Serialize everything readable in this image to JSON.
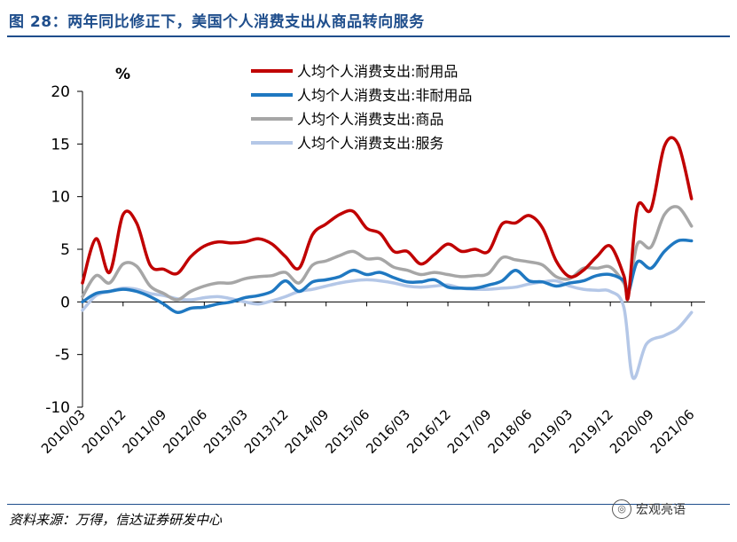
{
  "header": {
    "title": "图 28：两年同比修正下，美国个人消费支出从商品转向服务"
  },
  "footer": {
    "source": "资料来源：万得，信达证券研发中心",
    "watermark": "宏观亮语"
  },
  "chart_data": {
    "type": "line",
    "unit_label": "%",
    "ylim": [
      -10,
      20
    ],
    "yticks": [
      -10,
      -5,
      0,
      5,
      10,
      15,
      20
    ],
    "x_tick_labels": [
      "2010/03",
      "2010/12",
      "2011/09",
      "2012/06",
      "2013/03",
      "2013/12",
      "2014/09",
      "2015/06",
      "2016/03",
      "2016/12",
      "2017/09",
      "2018/06",
      "2019/03",
      "2019/12",
      "2020/09",
      "2021/06"
    ],
    "x_start": "2010/03",
    "x_end": "2021/09",
    "legend_position": "top-center",
    "series": [
      {
        "name": "人均个人消费支出:耐用品",
        "color": "#c00000",
        "points": [
          [
            "2010/03",
            1.8
          ],
          [
            "2010/06",
            6.0
          ],
          [
            "2010/09",
            2.8
          ],
          [
            "2010/12",
            8.3
          ],
          [
            "2011/03",
            7.5
          ],
          [
            "2011/06",
            3.5
          ],
          [
            "2011/09",
            3.1
          ],
          [
            "2011/12",
            2.7
          ],
          [
            "2012/03",
            4.3
          ],
          [
            "2012/06",
            5.3
          ],
          [
            "2012/09",
            5.7
          ],
          [
            "2012/12",
            5.6
          ],
          [
            "2013/03",
            5.7
          ],
          [
            "2013/06",
            6.0
          ],
          [
            "2013/09",
            5.5
          ],
          [
            "2013/12",
            4.3
          ],
          [
            "2014/03",
            3.2
          ],
          [
            "2014/06",
            6.4
          ],
          [
            "2014/09",
            7.4
          ],
          [
            "2014/12",
            8.3
          ],
          [
            "2015/03",
            8.6
          ],
          [
            "2015/06",
            7.0
          ],
          [
            "2015/09",
            6.5
          ],
          [
            "2015/12",
            4.8
          ],
          [
            "2016/03",
            4.8
          ],
          [
            "2016/06",
            3.6
          ],
          [
            "2016/09",
            4.5
          ],
          [
            "2016/12",
            5.5
          ],
          [
            "2017/03",
            4.8
          ],
          [
            "2017/06",
            5.0
          ],
          [
            "2017/09",
            4.8
          ],
          [
            "2017/12",
            7.4
          ],
          [
            "2018/03",
            7.5
          ],
          [
            "2018/06",
            8.2
          ],
          [
            "2018/09",
            7.0
          ],
          [
            "2018/12",
            3.9
          ],
          [
            "2019/03",
            2.4
          ],
          [
            "2019/06",
            3.0
          ],
          [
            "2019/09",
            4.3
          ],
          [
            "2019/12",
            5.3
          ],
          [
            "2020/03",
            2.5
          ],
          [
            "2020/04",
            0.5
          ],
          [
            "2020/06",
            9.0
          ],
          [
            "2020/09",
            8.8
          ],
          [
            "2020/12",
            14.8
          ],
          [
            "2021/03",
            15.0
          ],
          [
            "2021/06",
            9.8
          ]
        ]
      },
      {
        "name": "人均个人消费支出:非耐用品",
        "color": "#1f78c1",
        "points": [
          [
            "2010/03",
            0.0
          ],
          [
            "2010/06",
            0.8
          ],
          [
            "2010/09",
            1.0
          ],
          [
            "2010/12",
            1.2
          ],
          [
            "2011/03",
            1.0
          ],
          [
            "2011/06",
            0.5
          ],
          [
            "2011/09",
            -0.2
          ],
          [
            "2011/12",
            -1.0
          ],
          [
            "2012/03",
            -0.6
          ],
          [
            "2012/06",
            -0.5
          ],
          [
            "2012/09",
            -0.2
          ],
          [
            "2012/12",
            0.0
          ],
          [
            "2013/03",
            0.4
          ],
          [
            "2013/06",
            0.6
          ],
          [
            "2013/09",
            1.0
          ],
          [
            "2013/12",
            2.0
          ],
          [
            "2014/03",
            1.0
          ],
          [
            "2014/06",
            1.9
          ],
          [
            "2014/09",
            2.1
          ],
          [
            "2014/12",
            2.4
          ],
          [
            "2015/03",
            3.0
          ],
          [
            "2015/06",
            2.6
          ],
          [
            "2015/09",
            2.8
          ],
          [
            "2015/12",
            2.3
          ],
          [
            "2016/03",
            1.9
          ],
          [
            "2016/06",
            1.9
          ],
          [
            "2016/09",
            2.1
          ],
          [
            "2016/12",
            1.4
          ],
          [
            "2017/03",
            1.3
          ],
          [
            "2017/06",
            1.3
          ],
          [
            "2017/09",
            1.6
          ],
          [
            "2017/12",
            2.0
          ],
          [
            "2018/03",
            3.0
          ],
          [
            "2018/06",
            2.0
          ],
          [
            "2018/09",
            1.9
          ],
          [
            "2018/12",
            1.5
          ],
          [
            "2019/03",
            1.8
          ],
          [
            "2019/06",
            2.0
          ],
          [
            "2019/09",
            2.5
          ],
          [
            "2019/12",
            2.6
          ],
          [
            "2020/03",
            2.0
          ],
          [
            "2020/04",
            0.9
          ],
          [
            "2020/06",
            3.8
          ],
          [
            "2020/09",
            3.2
          ],
          [
            "2020/12",
            4.8
          ],
          [
            "2021/03",
            5.8
          ],
          [
            "2021/06",
            5.8
          ]
        ]
      },
      {
        "name": "人均个人消费支出:商品",
        "color": "#a6a6a6",
        "points": [
          [
            "2010/03",
            0.5
          ],
          [
            "2010/06",
            2.5
          ],
          [
            "2010/09",
            1.8
          ],
          [
            "2010/12",
            3.6
          ],
          [
            "2011/03",
            3.4
          ],
          [
            "2011/06",
            1.5
          ],
          [
            "2011/09",
            0.8
          ],
          [
            "2011/12",
            0.2
          ],
          [
            "2012/03",
            1.0
          ],
          [
            "2012/06",
            1.5
          ],
          [
            "2012/09",
            1.8
          ],
          [
            "2012/12",
            1.8
          ],
          [
            "2013/03",
            2.2
          ],
          [
            "2013/06",
            2.4
          ],
          [
            "2013/09",
            2.5
          ],
          [
            "2013/12",
            2.8
          ],
          [
            "2014/03",
            1.8
          ],
          [
            "2014/06",
            3.5
          ],
          [
            "2014/09",
            3.9
          ],
          [
            "2014/12",
            4.4
          ],
          [
            "2015/03",
            4.8
          ],
          [
            "2015/06",
            4.1
          ],
          [
            "2015/09",
            4.1
          ],
          [
            "2015/12",
            3.3
          ],
          [
            "2016/03",
            3.0
          ],
          [
            "2016/06",
            2.6
          ],
          [
            "2016/09",
            2.8
          ],
          [
            "2016/12",
            2.6
          ],
          [
            "2017/03",
            2.4
          ],
          [
            "2017/06",
            2.5
          ],
          [
            "2017/09",
            2.7
          ],
          [
            "2017/12",
            4.2
          ],
          [
            "2018/03",
            4.0
          ],
          [
            "2018/06",
            3.8
          ],
          [
            "2018/09",
            3.5
          ],
          [
            "2018/12",
            2.4
          ],
          [
            "2019/03",
            2.2
          ],
          [
            "2019/06",
            3.2
          ],
          [
            "2019/09",
            3.2
          ],
          [
            "2019/12",
            3.3
          ],
          [
            "2020/03",
            1.8
          ],
          [
            "2020/04",
            0.7
          ],
          [
            "2020/06",
            5.5
          ],
          [
            "2020/09",
            5.2
          ],
          [
            "2020/12",
            8.3
          ],
          [
            "2021/03",
            9.0
          ],
          [
            "2021/06",
            7.2
          ]
        ]
      },
      {
        "name": "人均个人消费支出:服务",
        "color": "#b4c7e7",
        "points": [
          [
            "2010/03",
            -0.8
          ],
          [
            "2010/06",
            0.6
          ],
          [
            "2010/09",
            1.0
          ],
          [
            "2010/12",
            1.3
          ],
          [
            "2011/03",
            1.2
          ],
          [
            "2011/06",
            0.8
          ],
          [
            "2011/09",
            0.6
          ],
          [
            "2011/12",
            0.3
          ],
          [
            "2012/03",
            0.2
          ],
          [
            "2012/06",
            0.4
          ],
          [
            "2012/09",
            0.5
          ],
          [
            "2012/12",
            0.3
          ],
          [
            "2013/03",
            0.0
          ],
          [
            "2013/06",
            -0.2
          ],
          [
            "2013/09",
            0.1
          ],
          [
            "2013/12",
            0.5
          ],
          [
            "2014/03",
            1.0
          ],
          [
            "2014/06",
            1.2
          ],
          [
            "2014/09",
            1.5
          ],
          [
            "2014/12",
            1.8
          ],
          [
            "2015/03",
            2.0
          ],
          [
            "2015/06",
            2.1
          ],
          [
            "2015/09",
            2.0
          ],
          [
            "2015/12",
            1.8
          ],
          [
            "2016/03",
            1.5
          ],
          [
            "2016/06",
            1.4
          ],
          [
            "2016/09",
            1.5
          ],
          [
            "2016/12",
            1.6
          ],
          [
            "2017/03",
            1.3
          ],
          [
            "2017/06",
            1.2
          ],
          [
            "2017/09",
            1.2
          ],
          [
            "2017/12",
            1.3
          ],
          [
            "2018/03",
            1.4
          ],
          [
            "2018/06",
            1.7
          ],
          [
            "2018/09",
            1.9
          ],
          [
            "2018/12",
            2.0
          ],
          [
            "2019/03",
            1.5
          ],
          [
            "2019/06",
            1.2
          ],
          [
            "2019/09",
            1.1
          ],
          [
            "2019/12",
            1.0
          ],
          [
            "2020/03",
            -0.5
          ],
          [
            "2020/05",
            -7.2
          ],
          [
            "2020/08",
            -4.0
          ],
          [
            "2020/12",
            -3.2
          ],
          [
            "2021/03",
            -2.5
          ],
          [
            "2021/06",
            -1.0
          ]
        ]
      }
    ]
  }
}
